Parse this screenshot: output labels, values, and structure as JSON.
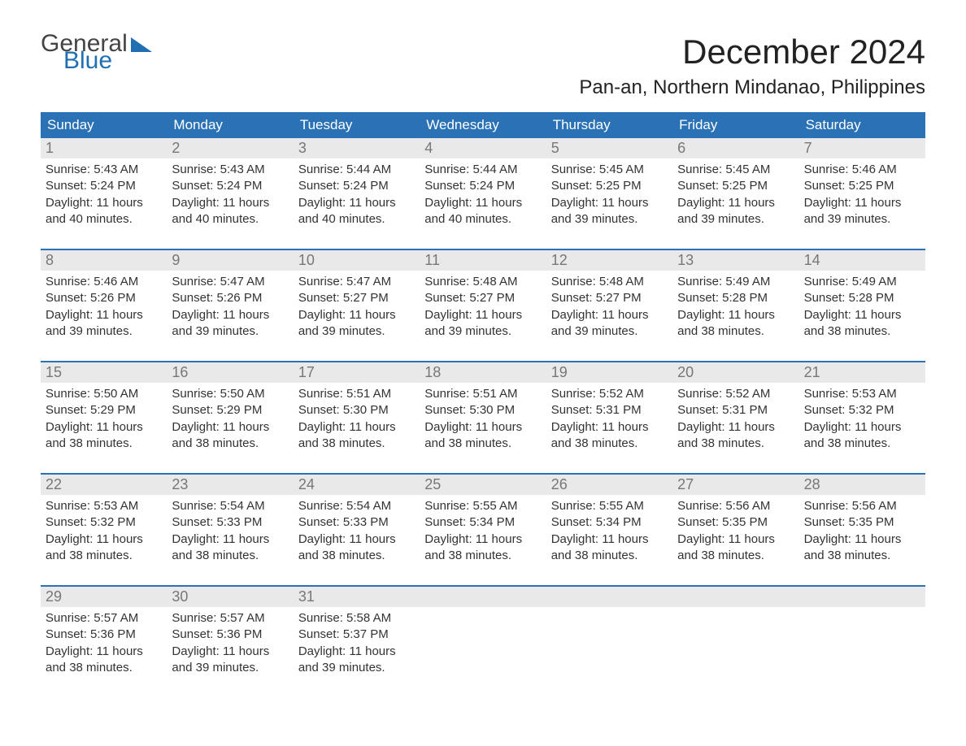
{
  "colors": {
    "header_bg": "#2a72b5",
    "header_text": "#ffffff",
    "daynum_bg": "#e9e9e9",
    "daynum_text": "#777777",
    "body_text": "#333333",
    "logo_blue": "#1f6fb2",
    "week_divider": "#2a72b5",
    "background": "#ffffff"
  },
  "logo": {
    "line1": "General",
    "line2": "Blue"
  },
  "title": "December 2024",
  "subtitle": "Pan-an, Northern Mindanao, Philippines",
  "weekdays": [
    "Sunday",
    "Monday",
    "Tuesday",
    "Wednesday",
    "Thursday",
    "Friday",
    "Saturday"
  ],
  "layout": {
    "columns": 7,
    "rows": 5,
    "title_fontsize": 42,
    "subtitle_fontsize": 24,
    "weekday_fontsize": 17,
    "daynum_fontsize": 18,
    "body_fontsize": 15
  },
  "weeks": [
    [
      {
        "num": "1",
        "sunrise": "Sunrise: 5:43 AM",
        "sunset": "Sunset: 5:24 PM",
        "daylight": "Daylight: 11 hours and 40 minutes."
      },
      {
        "num": "2",
        "sunrise": "Sunrise: 5:43 AM",
        "sunset": "Sunset: 5:24 PM",
        "daylight": "Daylight: 11 hours and 40 minutes."
      },
      {
        "num": "3",
        "sunrise": "Sunrise: 5:44 AM",
        "sunset": "Sunset: 5:24 PM",
        "daylight": "Daylight: 11 hours and 40 minutes."
      },
      {
        "num": "4",
        "sunrise": "Sunrise: 5:44 AM",
        "sunset": "Sunset: 5:24 PM",
        "daylight": "Daylight: 11 hours and 40 minutes."
      },
      {
        "num": "5",
        "sunrise": "Sunrise: 5:45 AM",
        "sunset": "Sunset: 5:25 PM",
        "daylight": "Daylight: 11 hours and 39 minutes."
      },
      {
        "num": "6",
        "sunrise": "Sunrise: 5:45 AM",
        "sunset": "Sunset: 5:25 PM",
        "daylight": "Daylight: 11 hours and 39 minutes."
      },
      {
        "num": "7",
        "sunrise": "Sunrise: 5:46 AM",
        "sunset": "Sunset: 5:25 PM",
        "daylight": "Daylight: 11 hours and 39 minutes."
      }
    ],
    [
      {
        "num": "8",
        "sunrise": "Sunrise: 5:46 AM",
        "sunset": "Sunset: 5:26 PM",
        "daylight": "Daylight: 11 hours and 39 minutes."
      },
      {
        "num": "9",
        "sunrise": "Sunrise: 5:47 AM",
        "sunset": "Sunset: 5:26 PM",
        "daylight": "Daylight: 11 hours and 39 minutes."
      },
      {
        "num": "10",
        "sunrise": "Sunrise: 5:47 AM",
        "sunset": "Sunset: 5:27 PM",
        "daylight": "Daylight: 11 hours and 39 minutes."
      },
      {
        "num": "11",
        "sunrise": "Sunrise: 5:48 AM",
        "sunset": "Sunset: 5:27 PM",
        "daylight": "Daylight: 11 hours and 39 minutes."
      },
      {
        "num": "12",
        "sunrise": "Sunrise: 5:48 AM",
        "sunset": "Sunset: 5:27 PM",
        "daylight": "Daylight: 11 hours and 39 minutes."
      },
      {
        "num": "13",
        "sunrise": "Sunrise: 5:49 AM",
        "sunset": "Sunset: 5:28 PM",
        "daylight": "Daylight: 11 hours and 38 minutes."
      },
      {
        "num": "14",
        "sunrise": "Sunrise: 5:49 AM",
        "sunset": "Sunset: 5:28 PM",
        "daylight": "Daylight: 11 hours and 38 minutes."
      }
    ],
    [
      {
        "num": "15",
        "sunrise": "Sunrise: 5:50 AM",
        "sunset": "Sunset: 5:29 PM",
        "daylight": "Daylight: 11 hours and 38 minutes."
      },
      {
        "num": "16",
        "sunrise": "Sunrise: 5:50 AM",
        "sunset": "Sunset: 5:29 PM",
        "daylight": "Daylight: 11 hours and 38 minutes."
      },
      {
        "num": "17",
        "sunrise": "Sunrise: 5:51 AM",
        "sunset": "Sunset: 5:30 PM",
        "daylight": "Daylight: 11 hours and 38 minutes."
      },
      {
        "num": "18",
        "sunrise": "Sunrise: 5:51 AM",
        "sunset": "Sunset: 5:30 PM",
        "daylight": "Daylight: 11 hours and 38 minutes."
      },
      {
        "num": "19",
        "sunrise": "Sunrise: 5:52 AM",
        "sunset": "Sunset: 5:31 PM",
        "daylight": "Daylight: 11 hours and 38 minutes."
      },
      {
        "num": "20",
        "sunrise": "Sunrise: 5:52 AM",
        "sunset": "Sunset: 5:31 PM",
        "daylight": "Daylight: 11 hours and 38 minutes."
      },
      {
        "num": "21",
        "sunrise": "Sunrise: 5:53 AM",
        "sunset": "Sunset: 5:32 PM",
        "daylight": "Daylight: 11 hours and 38 minutes."
      }
    ],
    [
      {
        "num": "22",
        "sunrise": "Sunrise: 5:53 AM",
        "sunset": "Sunset: 5:32 PM",
        "daylight": "Daylight: 11 hours and 38 minutes."
      },
      {
        "num": "23",
        "sunrise": "Sunrise: 5:54 AM",
        "sunset": "Sunset: 5:33 PM",
        "daylight": "Daylight: 11 hours and 38 minutes."
      },
      {
        "num": "24",
        "sunrise": "Sunrise: 5:54 AM",
        "sunset": "Sunset: 5:33 PM",
        "daylight": "Daylight: 11 hours and 38 minutes."
      },
      {
        "num": "25",
        "sunrise": "Sunrise: 5:55 AM",
        "sunset": "Sunset: 5:34 PM",
        "daylight": "Daylight: 11 hours and 38 minutes."
      },
      {
        "num": "26",
        "sunrise": "Sunrise: 5:55 AM",
        "sunset": "Sunset: 5:34 PM",
        "daylight": "Daylight: 11 hours and 38 minutes."
      },
      {
        "num": "27",
        "sunrise": "Sunrise: 5:56 AM",
        "sunset": "Sunset: 5:35 PM",
        "daylight": "Daylight: 11 hours and 38 minutes."
      },
      {
        "num": "28",
        "sunrise": "Sunrise: 5:56 AM",
        "sunset": "Sunset: 5:35 PM",
        "daylight": "Daylight: 11 hours and 38 minutes."
      }
    ],
    [
      {
        "num": "29",
        "sunrise": "Sunrise: 5:57 AM",
        "sunset": "Sunset: 5:36 PM",
        "daylight": "Daylight: 11 hours and 38 minutes."
      },
      {
        "num": "30",
        "sunrise": "Sunrise: 5:57 AM",
        "sunset": "Sunset: 5:36 PM",
        "daylight": "Daylight: 11 hours and 39 minutes."
      },
      {
        "num": "31",
        "sunrise": "Sunrise: 5:58 AM",
        "sunset": "Sunset: 5:37 PM",
        "daylight": "Daylight: 11 hours and 39 minutes."
      },
      null,
      null,
      null,
      null
    ]
  ]
}
